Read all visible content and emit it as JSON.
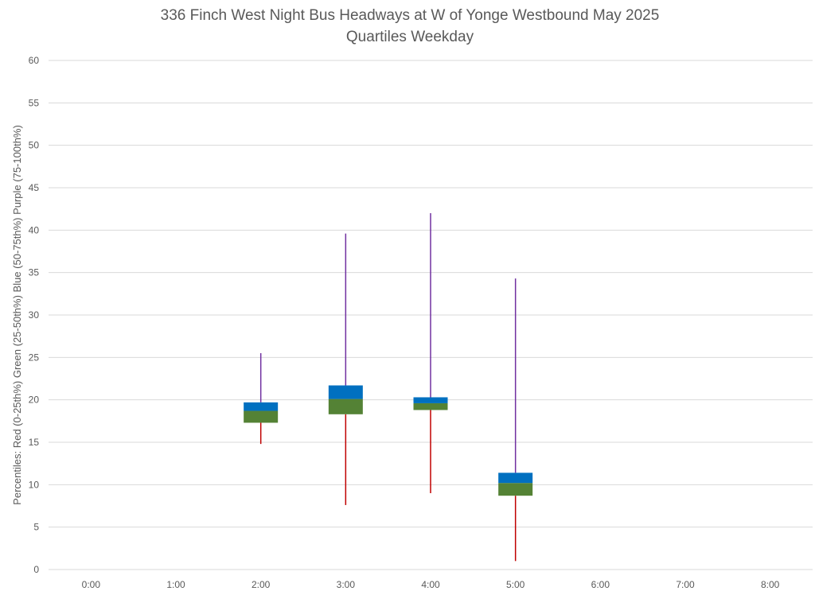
{
  "chart_data": {
    "type": "box",
    "title": "336 Finch West Night Bus Headways at W of Yonge Westbound May 2025",
    "subtitle": "Quartiles Weekday",
    "ylabel": "Percentiles:  Red (0-25th%)  Green (25-50th%)  Blue (50-75th%)  Purple (75-100th%)",
    "xlabel": "",
    "ylim": [
      0,
      60
    ],
    "ytick_step": 5,
    "yticks": [
      "0",
      "5",
      "10",
      "15",
      "20",
      "25",
      "30",
      "35",
      "40",
      "45",
      "50",
      "55",
      "60"
    ],
    "categories": [
      "0:00",
      "1:00",
      "2:00",
      "3:00",
      "4:00",
      "5:00",
      "6:00",
      "7:00",
      "8:00"
    ],
    "series": [
      {
        "category": "2:00",
        "min": 14.8,
        "q1": 17.3,
        "median": 18.7,
        "q3": 19.7,
        "max": 25.5
      },
      {
        "category": "3:00",
        "min": 7.6,
        "q1": 18.3,
        "median": 20.1,
        "q3": 21.7,
        "max": 39.6
      },
      {
        "category": "4:00",
        "min": 9.0,
        "q1": 18.8,
        "median": 19.6,
        "q3": 20.3,
        "max": 42.0
      },
      {
        "category": "5:00",
        "min": 1.0,
        "q1": 8.7,
        "median": 10.2,
        "q3": 11.4,
        "max": 34.3
      }
    ],
    "colors": {
      "red": "#c00000",
      "green": "#548235",
      "blue": "#0070c0",
      "purple": "#7030a0",
      "grid": "#d9d9d9",
      "text": "#595959"
    }
  }
}
